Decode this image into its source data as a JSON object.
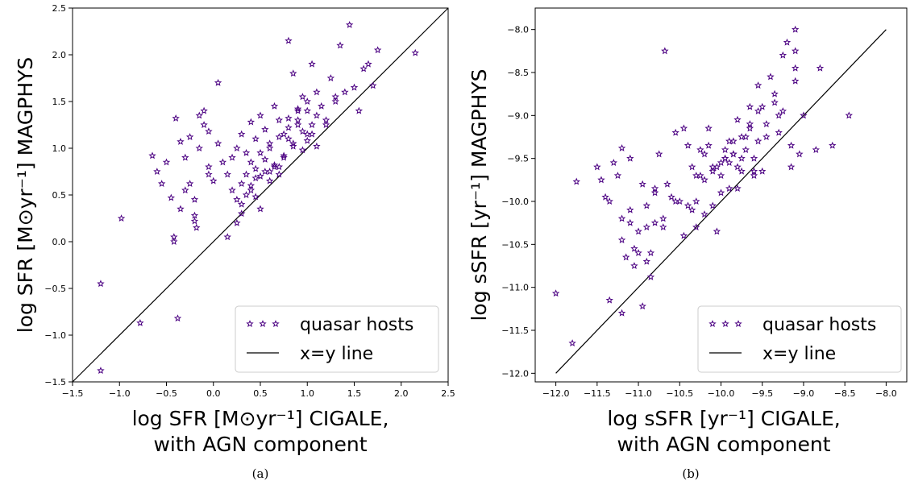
{
  "accent_color": "#4b0082",
  "chart_data": [
    {
      "type": "scatter",
      "caption": "(a)",
      "xlabel_lines": [
        "log SFR [M⊙yr⁻¹] CIGALE,",
        "with AGN component"
      ],
      "ylabel": "log SFR [M⊙yr⁻¹] MAGPHYS",
      "xlim": [
        -1.5,
        2.5
      ],
      "ylim": [
        -1.5,
        2.5
      ],
      "xticks": [
        -1.5,
        -1.0,
        -0.5,
        0.0,
        0.5,
        1.0,
        1.5,
        2.0,
        2.5
      ],
      "yticks": [
        -1.5,
        -1.0,
        -0.5,
        0.0,
        0.5,
        1.0,
        1.5,
        2.0,
        2.5
      ],
      "xtick_labels": [
        "−1.5",
        "−1.0",
        "−0.5",
        "0.0",
        "0.5",
        "1.0",
        "1.5",
        "2.0",
        "2.5"
      ],
      "ytick_labels": [
        "−1.5",
        "−1.0",
        "−0.5",
        "0.0",
        "0.5",
        "1.0",
        "1.5",
        "2.0",
        "2.5"
      ],
      "grid": false,
      "legend_position": "bottom-right",
      "series": [
        {
          "name": "quasar hosts",
          "marker": "star-outline",
          "color": "#4b0082",
          "x": [
            -1.2,
            -1.2,
            -0.98,
            -0.78,
            -0.38,
            -0.45,
            -0.42,
            -0.42,
            -0.35,
            -0.3,
            -0.25,
            -0.2,
            -0.2,
            -0.18,
            -0.05,
            -0.15,
            -0.1,
            -0.05,
            0.05,
            -0.65,
            -0.6,
            -0.55,
            -0.5,
            -0.4,
            -0.35,
            -0.3,
            -0.25,
            -0.2,
            -0.15,
            -0.1,
            -0.05,
            0.0,
            0.05,
            0.1,
            0.15,
            0.2,
            0.25,
            0.3,
            0.35,
            0.4,
            0.45,
            0.5,
            0.55,
            0.6,
            0.65,
            0.7,
            0.75,
            0.8,
            0.85,
            0.9,
            0.95,
            1.0,
            1.05,
            1.1,
            1.15,
            1.2,
            1.25,
            1.3,
            1.35,
            1.4,
            1.45,
            1.5,
            1.55,
            1.6,
            1.65,
            1.7,
            1.75,
            2.15,
            0.2,
            0.3,
            0.35,
            0.4,
            0.45,
            0.5,
            0.55,
            0.6,
            0.65,
            0.7,
            0.75,
            0.8,
            0.85,
            0.9,
            0.95,
            1.0,
            1.05,
            1.1,
            0.25,
            0.35,
            0.45,
            0.55,
            0.65,
            0.75,
            0.85,
            0.95,
            1.05,
            0.3,
            0.4,
            0.5,
            0.6,
            0.7,
            0.8,
            0.9,
            1.0,
            0.8,
            0.9,
            1.0,
            1.1,
            1.2,
            1.3,
            0.4,
            0.5,
            0.6,
            0.7,
            0.3,
            0.45,
            0.15,
            0.25
          ],
          "y": [
            -0.45,
            -1.38,
            0.25,
            -0.87,
            -0.82,
            0.47,
            0.05,
            0.0,
            0.35,
            0.55,
            0.62,
            0.28,
            0.22,
            0.15,
            0.72,
            1.35,
            1.4,
            1.18,
            1.7,
            0.92,
            0.75,
            0.62,
            0.85,
            1.32,
            1.07,
            0.9,
            1.12,
            0.45,
            1.0,
            1.25,
            0.8,
            0.65,
            1.05,
            0.85,
            0.72,
            0.9,
            1.0,
            1.15,
            0.95,
            1.28,
            1.1,
            1.35,
            1.2,
            1.05,
            1.45,
            1.3,
            1.15,
            2.15,
            1.8,
            1.25,
            1.55,
            1.4,
            1.9,
            1.6,
            1.45,
            1.3,
            1.75,
            1.5,
            2.1,
            1.6,
            2.32,
            1.65,
            1.4,
            1.85,
            1.9,
            1.67,
            2.05,
            2.02,
            0.55,
            0.62,
            0.72,
            0.85,
            0.78,
            0.95,
            0.88,
            1.0,
            0.82,
            1.12,
            0.9,
            1.22,
            1.05,
            1.3,
            1.18,
            1.08,
            1.25,
            1.35,
            0.45,
            0.5,
            0.68,
            0.75,
            0.8,
            0.92,
            1.02,
            0.98,
            1.15,
            0.4,
            0.55,
            0.35,
            0.65,
            0.72,
            1.1,
            1.4,
            1.5,
            1.32,
            1.42,
            1.15,
            1.02,
            1.25,
            1.55,
            0.6,
            0.7,
            0.75,
            0.8,
            0.3,
            0.48,
            0.05,
            0.2
          ]
        },
        {
          "name": "x=y line",
          "type": "line",
          "color": "#000000",
          "x": [
            -1.5,
            2.5
          ],
          "y": [
            -1.5,
            2.5
          ]
        }
      ]
    },
    {
      "type": "scatter",
      "caption": "(b)",
      "xlabel_lines": [
        "log sSFR [yr⁻¹] CIGALE,",
        "with AGN component"
      ],
      "ylabel": "log sSFR [yr⁻¹] MAGPHYS",
      "xlim": [
        -12.25,
        -7.75
      ],
      "ylim": [
        -12.1,
        -7.75
      ],
      "xticks": [
        -12.0,
        -11.5,
        -11.0,
        -10.5,
        -10.0,
        -9.5,
        -9.0,
        -8.5,
        -8.0
      ],
      "yticks": [
        -12.0,
        -11.5,
        -11.0,
        -10.5,
        -10.0,
        -9.5,
        -9.0,
        -8.5,
        -8.0
      ],
      "xtick_labels": [
        "−12.0",
        "−11.5",
        "−11.0",
        "−10.5",
        "−10.0",
        "−9.5",
        "−9.0",
        "−8.5",
        "−8.0"
      ],
      "ytick_labels": [
        "−12.0",
        "−11.5",
        "−11.0",
        "−10.5",
        "−10.0",
        "−9.5",
        "−9.0",
        "−8.5",
        "−8.0"
      ],
      "grid": false,
      "legend_position": "bottom-right",
      "series": [
        {
          "name": "quasar hosts",
          "marker": "star-outline",
          "color": "#4b0082",
          "x": [
            -12.0,
            -11.8,
            -11.75,
            -11.35,
            -11.3,
            -11.2,
            -11.2,
            -11.15,
            -11.1,
            -11.05,
            -11.0,
            -10.95,
            -10.9,
            -10.85,
            -10.8,
            -10.75,
            -10.7,
            -10.68,
            -10.6,
            -10.55,
            -10.5,
            -10.45,
            -10.4,
            -10.35,
            -10.3,
            -10.25,
            -10.2,
            -10.15,
            -10.1,
            -10.05,
            -10.0,
            -9.95,
            -9.9,
            -9.85,
            -9.8,
            -9.75,
            -9.7,
            -9.65,
            -9.6,
            -9.55,
            -9.5,
            -9.45,
            -9.4,
            -9.35,
            -9.3,
            -9.25,
            -9.2,
            -9.15,
            -9.1,
            -9.05,
            -9.0,
            -8.85,
            -8.8,
            -8.65,
            -8.45,
            -11.5,
            -11.45,
            -11.4,
            -11.35,
            -11.25,
            -11.2,
            -11.1,
            -11.05,
            -10.95,
            -10.9,
            -10.85,
            -10.8,
            -10.7,
            -10.65,
            -10.55,
            -10.45,
            -10.35,
            -10.25,
            -10.15,
            -10.05,
            -9.95,
            -9.85,
            -9.75,
            -9.65,
            -9.55,
            -9.45,
            -9.35,
            -9.25,
            -9.15,
            -9.1,
            -9.1,
            -9.1,
            -9.6,
            -9.55,
            -9.3,
            -10.4,
            -10.3,
            -10.2,
            -10.1,
            -10.0,
            -9.9,
            -9.8,
            -9.7,
            -9.6,
            -9.5,
            -11.2,
            -11.1,
            -11.0,
            -10.9,
            -10.8,
            -10.3,
            -10.2,
            -10.1,
            -10.0,
            -9.9,
            -9.8,
            -9.95,
            -9.85,
            -9.75,
            -9.65
          ],
          "y": [
            -11.07,
            -11.65,
            -9.77,
            -11.15,
            -9.55,
            -9.38,
            -11.3,
            -10.65,
            -10.25,
            -10.75,
            -10.6,
            -11.22,
            -10.05,
            -10.88,
            -9.85,
            -9.45,
            -10.2,
            -8.25,
            -9.95,
            -9.2,
            -10.0,
            -9.15,
            -9.35,
            -9.6,
            -9.7,
            -9.4,
            -9.45,
            -9.15,
            -9.6,
            -10.35,
            -9.55,
            -9.5,
            -9.3,
            -9.45,
            -9.05,
            -9.65,
            -9.25,
            -8.9,
            -9.5,
            -8.65,
            -8.9,
            -9.25,
            -8.55,
            -8.75,
            -9.0,
            -8.3,
            -8.15,
            -9.6,
            -8.0,
            -9.45,
            -9.0,
            -9.4,
            -8.45,
            -9.35,
            -9.0,
            -9.6,
            -9.75,
            -9.95,
            -10.0,
            -9.7,
            -10.2,
            -9.5,
            -10.55,
            -9.8,
            -10.3,
            -10.6,
            -9.9,
            -10.3,
            -9.8,
            -10.0,
            -10.4,
            -10.1,
            -9.7,
            -9.35,
            -9.6,
            -9.4,
            -9.45,
            -9.5,
            -9.15,
            -9.3,
            -9.1,
            -8.85,
            -8.95,
            -9.35,
            -8.6,
            -8.45,
            -8.25,
            -9.65,
            -8.95,
            -9.2,
            -10.05,
            -10.0,
            -9.75,
            -9.65,
            -9.9,
            -9.55,
            -9.85,
            -9.4,
            -9.7,
            -9.65,
            -10.45,
            -10.1,
            -10.35,
            -10.7,
            -10.25,
            -10.3,
            -10.15,
            -10.05,
            -9.7,
            -9.85,
            -9.6,
            -9.5,
            -9.3,
            -9.25,
            -9.1
          ]
        },
        {
          "name": "x=y line",
          "type": "line",
          "color": "#000000",
          "x": [
            -12.0,
            -8.0
          ],
          "y": [
            -12.0,
            -8.0
          ]
        }
      ]
    }
  ]
}
